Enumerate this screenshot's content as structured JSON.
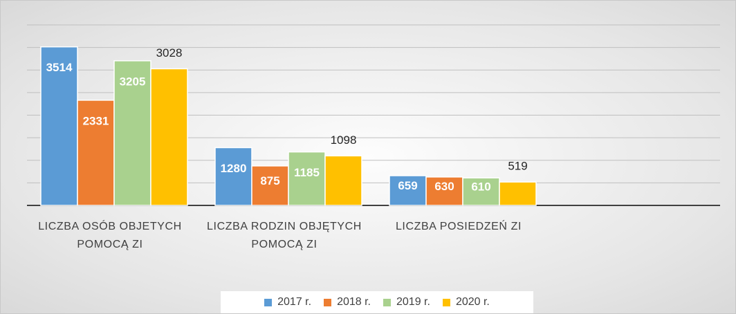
{
  "chart_data": {
    "type": "bar",
    "categories": [
      "LICZBA OSÓB OBJETYCH POMOCĄ ZI",
      "LICZBA RODZIN OBJĘTYCH POMOCĄ ZI",
      "LICZBA POSIEDZEŃ ZI"
    ],
    "series": [
      {
        "name": "2017 r.",
        "color": "#5b9bd5",
        "values": [
          3514,
          1280,
          659
        ]
      },
      {
        "name": "2018 r.",
        "color": "#ed7d31",
        "values": [
          2331,
          875,
          630
        ]
      },
      {
        "name": "2019 r.",
        "color": "#a9d18e",
        "values": [
          3205,
          1185,
          610
        ]
      },
      {
        "name": "2020 r.",
        "color": "#ffc000",
        "values": [
          3028,
          1098,
          519
        ]
      }
    ],
    "ylim": [
      0,
      4000
    ],
    "yticks": [
      0,
      500,
      1000,
      1500,
      2000,
      2500,
      3000,
      3500,
      4000
    ],
    "grid": true,
    "legend": "bottom"
  }
}
